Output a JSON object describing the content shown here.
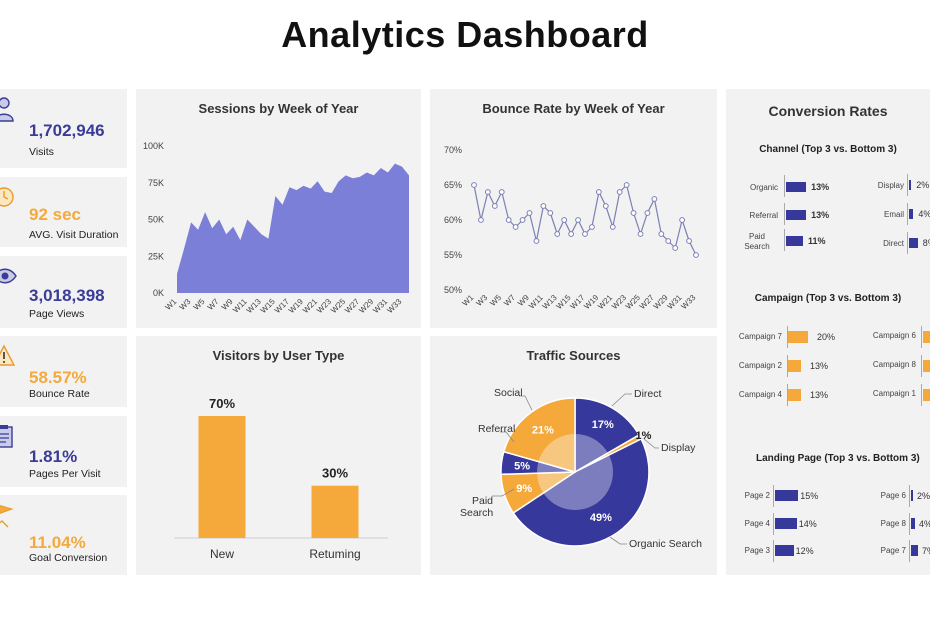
{
  "header": {
    "title": "Analytics Dashboard"
  },
  "colors": {
    "blue": "#36389b",
    "orange": "#f5a93b",
    "purple": "#7b7fd8",
    "line": "#7b7fb4"
  },
  "kpis": [
    {
      "value": "1,702,946",
      "label": "Visits",
      "color": "#3a3c97",
      "icon": "user-icon"
    },
    {
      "value": "92 sec",
      "label": "AVG. Visit Duration",
      "color": "#f5a93b",
      "icon": "clock-icon"
    },
    {
      "value": "3,018,398",
      "label": "Page Views",
      "color": "#3a3c97",
      "icon": "eye-icon"
    },
    {
      "value": "58.57%",
      "label": "Bounce Rate",
      "color": "#f5a93b",
      "icon": "warning-icon"
    },
    {
      "value": "1.81%",
      "label": "Pages Per Visit",
      "color": "#3a3c97",
      "icon": "clipboard-icon"
    },
    {
      "value": "11.04%",
      "label": "Goal Conversion",
      "color": "#f5a93b",
      "icon": "flag-icon"
    }
  ],
  "sessions": {
    "title": "Sessions  by Week of Year",
    "chart_data": {
      "type": "area",
      "title": "Sessions  by Week of Year",
      "ylim": [
        0,
        100000
      ],
      "yticks": [
        "0K",
        "25K",
        "50K",
        "75K",
        "100K"
      ],
      "xticks": [
        "W1",
        "W3",
        "W5",
        "W7",
        "W9",
        "W11",
        "W13",
        "W15",
        "W17",
        "W19",
        "W21",
        "W23",
        "W25",
        "W27",
        "W29",
        "W31",
        "W33"
      ],
      "values": [
        13000,
        30000,
        48000,
        43000,
        55000,
        44000,
        50000,
        40000,
        45000,
        36000,
        50000,
        45000,
        40000,
        37000,
        66000,
        60000,
        72000,
        70000,
        73000,
        71000,
        76000,
        69000,
        68000,
        76000,
        80000,
        78000,
        79000,
        82000,
        80000,
        85000,
        82000,
        88000,
        86000,
        80000
      ]
    }
  },
  "bounce": {
    "title": "Bounce Rate by Week of Year",
    "chart_data": {
      "type": "line",
      "title": "Bounce Rate by Week of Year",
      "ylim": [
        50,
        70
      ],
      "yticks": [
        "50%",
        "55%",
        "60%",
        "65%",
        "70%"
      ],
      "xticks": [
        "W1",
        "W3",
        "W5",
        "W7",
        "W9",
        "W11",
        "W13",
        "W15",
        "W17",
        "W19",
        "W21",
        "W23",
        "W25",
        "W27",
        "W29",
        "W31",
        "W33"
      ],
      "values": [
        65,
        60,
        64,
        62,
        64,
        60,
        59,
        60,
        61,
        57,
        62,
        61,
        58,
        60,
        58,
        60,
        58,
        59,
        64,
        62,
        59,
        64,
        65,
        61,
        58,
        61,
        63,
        58,
        57,
        56,
        60,
        57,
        55
      ]
    }
  },
  "visitors": {
    "title": "Visitors by User Type",
    "chart_data": {
      "type": "bar",
      "title": "Visitors by User Type",
      "categories": [
        "New",
        "Returning"
      ],
      "category_labels": [
        "New",
        "Retuming"
      ],
      "values": [
        70,
        30
      ],
      "value_labels": [
        "70%",
        "30%"
      ],
      "ylim": [
        0,
        100
      ]
    }
  },
  "traffic": {
    "title": "Traffic Sources",
    "chart_data": {
      "type": "pie",
      "title": "Traffic Sources",
      "slices": [
        {
          "name": "Direct",
          "value": 17,
          "label": "17%",
          "color": "#36389b"
        },
        {
          "name": "Display",
          "value": 1,
          "label": "1%",
          "color": "#f5a93b"
        },
        {
          "name": "Organic Search",
          "value": 49,
          "label": "49%",
          "color": "#36389b"
        },
        {
          "name": "Paid Search",
          "value": 9,
          "label": "9%",
          "color": "#f5a93b"
        },
        {
          "name": "Referral",
          "value": 5,
          "label": "5%",
          "color": "#36389b"
        },
        {
          "name": "Social",
          "value": 21,
          "label": "21%",
          "color": "#f5a93b"
        }
      ],
      "legend_labels": {
        "direct": "Direct",
        "display": "Display",
        "organic": "Organic Search",
        "paid1": "Paid",
        "paid2": "Search",
        "referral": "Referral",
        "social": "Social"
      }
    }
  },
  "conversion": {
    "title": "Conversion Rates",
    "channel": {
      "title": "Channel (Top 3 vs. Bottom 3)",
      "top": [
        {
          "label": "Organic",
          "value": 13,
          "text": "13%"
        },
        {
          "label": "Referral",
          "value": 13,
          "text": "13%"
        },
        {
          "label": "Paid Search",
          "label1": "Paid",
          "label2": "Search",
          "value": 11,
          "text": "11%"
        }
      ],
      "bottom": [
        {
          "label": "Display",
          "value": 2,
          "text": "2%"
        },
        {
          "label": "Email",
          "value": 4,
          "text": "4%"
        },
        {
          "label": "Direct",
          "value": 8,
          "text": "8%"
        }
      ]
    },
    "campaign": {
      "title": "Campaign (Top 3 vs. Bottom 3)",
      "top": [
        {
          "label": "Campaign 7",
          "value": 20,
          "text": "20%"
        },
        {
          "label": "Campaign 2",
          "value": 13,
          "text": "13%"
        },
        {
          "label": "Campaign 4",
          "value": 13,
          "text": "13%"
        }
      ],
      "bottom": [
        {
          "label": "Campaign 6"
        },
        {
          "label": "Campaign 8"
        },
        {
          "label": "Campaign 1"
        }
      ]
    },
    "landing": {
      "title": "Landing Page (Top 3 vs. Bottom 3)",
      "top": [
        {
          "label": "Page 2",
          "value": 15,
          "text": "15%"
        },
        {
          "label": "Page 4",
          "value": 14,
          "text": "14%"
        },
        {
          "label": "Page 3",
          "value": 12,
          "text": "12%"
        }
      ],
      "bottom": [
        {
          "label": "Page 6",
          "value": 2,
          "text": "2%"
        },
        {
          "label": "Page 8",
          "value": 4,
          "text": "4%"
        },
        {
          "label": "Page 7",
          "value": 7,
          "text": "7%"
        }
      ]
    }
  }
}
